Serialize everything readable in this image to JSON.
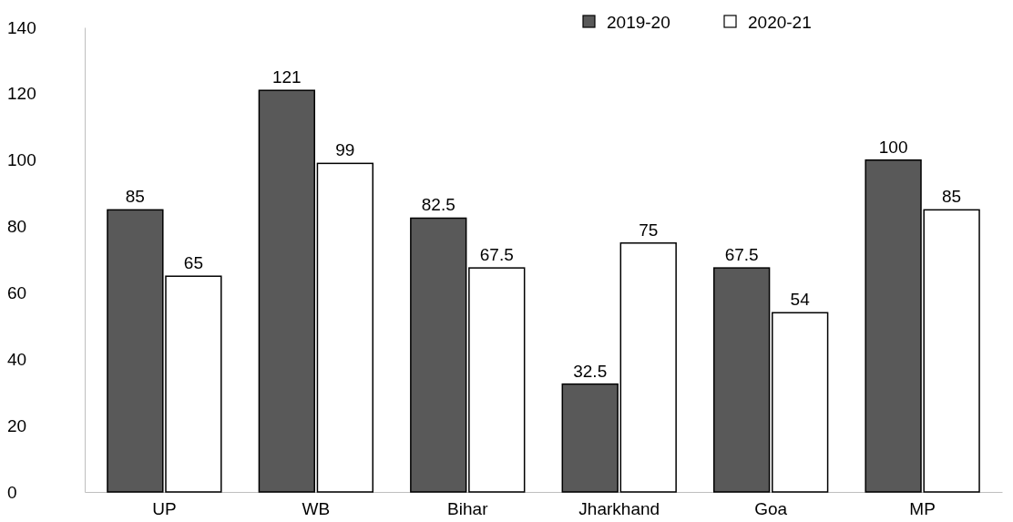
{
  "chart_data": {
    "type": "bar",
    "categories": [
      "UP",
      "WB",
      "Bihar",
      "Jharkhand",
      "Goa",
      "MP"
    ],
    "series": [
      {
        "name": "2019-20",
        "color": "#595959",
        "values": [
          85,
          121,
          82.5,
          32.5,
          67.5,
          100
        ]
      },
      {
        "name": "2020-21",
        "color": "#ffffff",
        "values": [
          65,
          99,
          67.5,
          75,
          54,
          85
        ]
      }
    ],
    "ylim": [
      0,
      140
    ],
    "yticks": [
      0,
      20,
      40,
      60,
      80,
      100,
      120,
      140
    ],
    "grid": false,
    "legend": "top right",
    "data_labels": true
  }
}
